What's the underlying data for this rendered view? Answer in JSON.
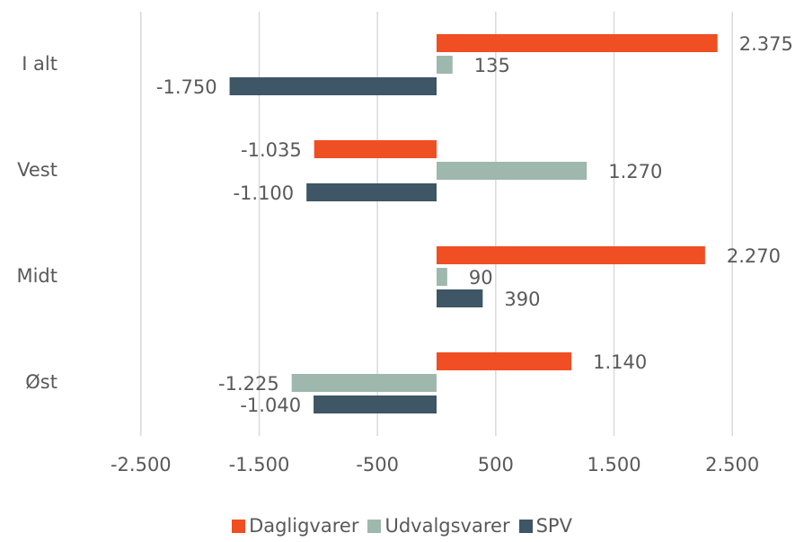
{
  "chart_data": {
    "type": "hbar",
    "categories": [
      "I alt",
      "Vest",
      "Midt",
      "Øst"
    ],
    "series": [
      {
        "name": "Dagligvarer",
        "color": "#f04e23",
        "values": [
          2375,
          -1035,
          2270,
          1140
        ],
        "value_labels": [
          "2.375",
          "-1.035",
          "2.270",
          "1.140"
        ]
      },
      {
        "name": "Udvalgsvarer",
        "color": "#9fb8ad",
        "values": [
          135,
          1270,
          90,
          -1225
        ],
        "value_labels": [
          "135",
          "1.270",
          "90",
          "-1.225"
        ]
      },
      {
        "name": "SPV",
        "color": "#3e5666",
        "values": [
          -1750,
          -1100,
          390,
          -1040
        ],
        "value_labels": [
          "-1.750",
          "-1.100",
          "390",
          "-1.040"
        ]
      }
    ],
    "xlim": [
      -3000,
      3000
    ],
    "xticks": [
      {
        "value": -2500,
        "label": "-2.500"
      },
      {
        "value": -1500,
        "label": "-1.500"
      },
      -500,
      500,
      {
        "value": 1500,
        "label": "1.500"
      },
      {
        "value": 2500,
        "label": "2.500"
      }
    ],
    "grid": true,
    "legend": "bottom"
  }
}
